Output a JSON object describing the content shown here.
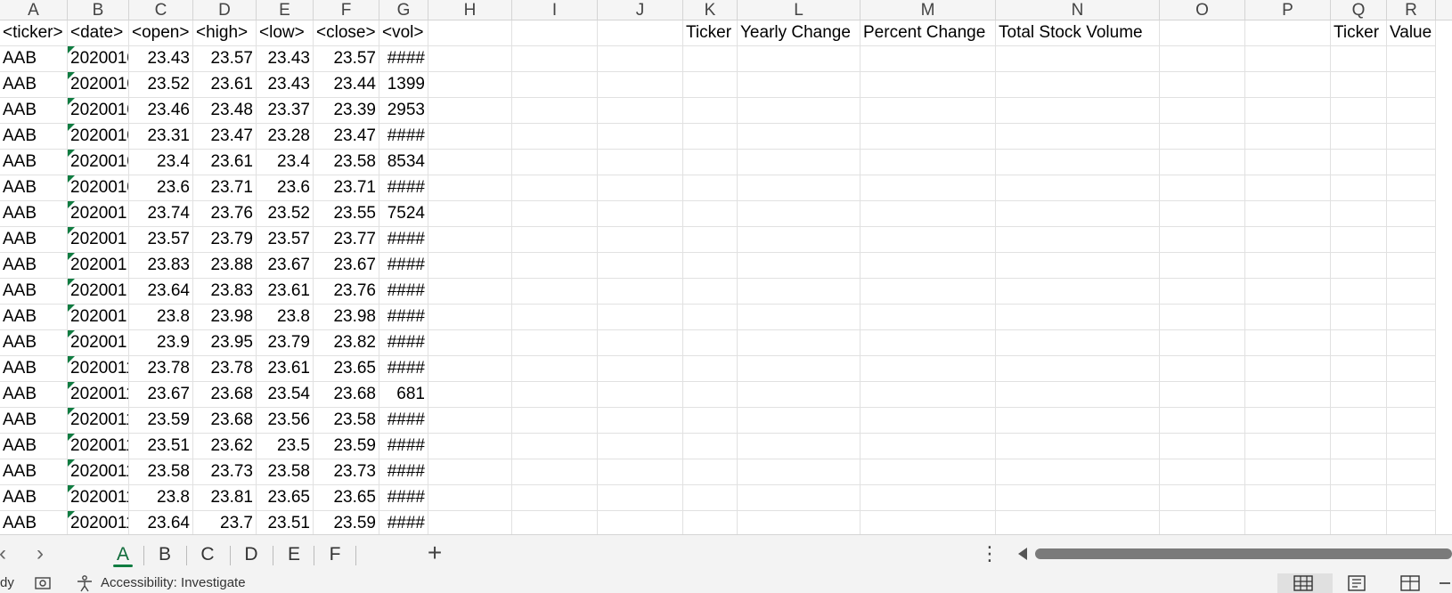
{
  "columns": [
    "A",
    "B",
    "C",
    "D",
    "E",
    "F",
    "G",
    "H",
    "I",
    "J",
    "K",
    "L",
    "M",
    "N",
    "O",
    "P",
    "Q",
    "R"
  ],
  "header_row": [
    "<ticker>",
    "<date>",
    "<open>",
    "<high>",
    "<low>",
    "<close>",
    "<vol>",
    "",
    "",
    "",
    "Ticker",
    "Yearly Change",
    "Percent Change",
    "Total Stock Volume",
    "",
    "",
    "Ticker",
    "Value"
  ],
  "rows": [
    [
      "AAB",
      "2020010",
      "23.43",
      "23.57",
      "23.43",
      "23.57",
      "####"
    ],
    [
      "AAB",
      "2020010",
      "23.52",
      "23.61",
      "23.43",
      "23.44",
      "1399"
    ],
    [
      "AAB",
      "2020010",
      "23.46",
      "23.48",
      "23.37",
      "23.39",
      "2953"
    ],
    [
      "AAB",
      "2020010",
      "23.31",
      "23.47",
      "23.28",
      "23.47",
      "####"
    ],
    [
      "AAB",
      "2020010",
      "23.4",
      "23.61",
      "23.4",
      "23.58",
      "8534"
    ],
    [
      "AAB",
      "2020010",
      "23.6",
      "23.71",
      "23.6",
      "23.71",
      "####"
    ],
    [
      "AAB",
      "202001",
      "23.74",
      "23.76",
      "23.52",
      "23.55",
      "7524"
    ],
    [
      "AAB",
      "202001",
      "23.57",
      "23.79",
      "23.57",
      "23.77",
      "####"
    ],
    [
      "AAB",
      "202001",
      "23.83",
      "23.88",
      "23.67",
      "23.67",
      "####"
    ],
    [
      "AAB",
      "202001",
      "23.64",
      "23.83",
      "23.61",
      "23.76",
      "####"
    ],
    [
      "AAB",
      "202001",
      "23.8",
      "23.98",
      "23.8",
      "23.98",
      "####"
    ],
    [
      "AAB",
      "202001",
      "23.9",
      "23.95",
      "23.79",
      "23.82",
      "####"
    ],
    [
      "AAB",
      "2020011",
      "23.78",
      "23.78",
      "23.61",
      "23.65",
      "####"
    ],
    [
      "AAB",
      "2020011",
      "23.67",
      "23.68",
      "23.54",
      "23.68",
      "681"
    ],
    [
      "AAB",
      "2020011",
      "23.59",
      "23.68",
      "23.56",
      "23.58",
      "####"
    ],
    [
      "AAB",
      "2020011",
      "23.51",
      "23.62",
      "23.5",
      "23.59",
      "####"
    ],
    [
      "AAB",
      "2020011",
      "23.58",
      "23.73",
      "23.58",
      "23.73",
      "####"
    ],
    [
      "AAB",
      "2020011",
      "23.8",
      "23.81",
      "23.65",
      "23.65",
      "####"
    ],
    [
      "AAB",
      "2020011",
      "23.64",
      "23.7",
      "23.51",
      "23.59",
      "####"
    ]
  ],
  "sheet_tabs": [
    "A",
    "B",
    "C",
    "D",
    "E",
    "F"
  ],
  "active_sheet": "A",
  "nav": {
    "prev": "‹",
    "next": "›",
    "add": "+",
    "more": "⋮"
  },
  "status": {
    "ready": "dy",
    "accessibility": "Accessibility: Investigate"
  },
  "colors": {
    "accent": "#107c41",
    "header_bg": "#f5f5f5",
    "grid_line": "#e1e1e1"
  }
}
